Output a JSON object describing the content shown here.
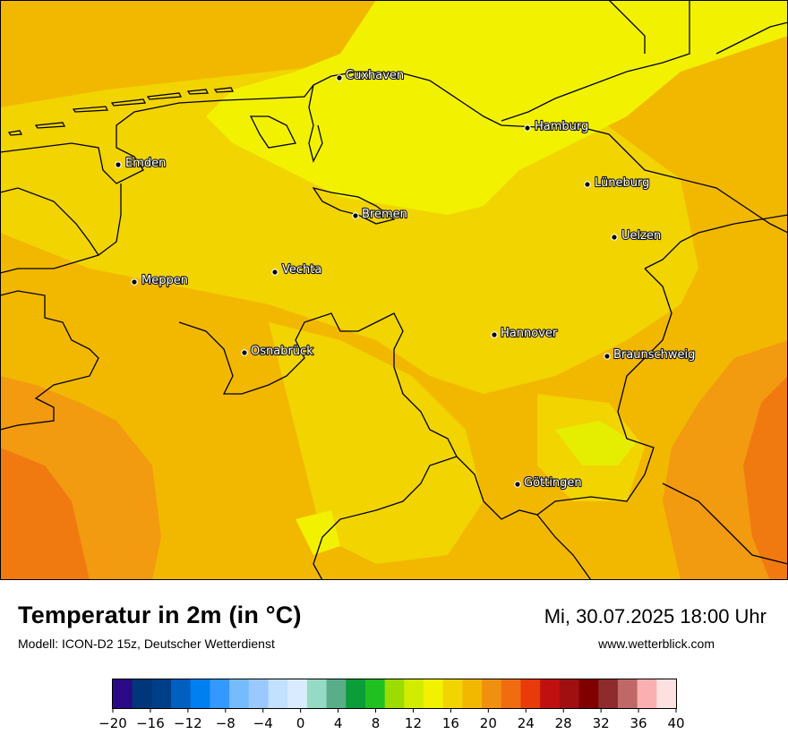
{
  "map": {
    "cities": [
      {
        "name": "Cuxhaven"
      },
      {
        "name": "Hamburg"
      },
      {
        "name": "Emden"
      },
      {
        "name": "Lüneburg"
      },
      {
        "name": "Bremen"
      },
      {
        "name": "Uelzen"
      },
      {
        "name": "Vechta"
      },
      {
        "name": "Meppen"
      },
      {
        "name": "Hannover"
      },
      {
        "name": "Osnabrück"
      },
      {
        "name": "Braunschweig"
      },
      {
        "name": "Göttingen"
      }
    ]
  },
  "footer": {
    "title": "Temperatur in 2m (in °C)",
    "model": "Modell: ICON-D2 15z, Deutscher Wetterdienst",
    "datetime": "Mi, 30.07.2025 18:00 Uhr",
    "website": "www.wetterblick.com"
  },
  "legend": {
    "ticks": [
      "−20",
      "−16",
      "−12",
      "−8",
      "−4",
      "0",
      "4",
      "8",
      "12",
      "16",
      "20",
      "24",
      "28",
      "32",
      "36",
      "40"
    ],
    "colors": [
      "#2a0a86",
      "#00367a",
      "#003f87",
      "#0060c0",
      "#0080f0",
      "#3399ff",
      "#77bbff",
      "#99c9ff",
      "#c2e0ff",
      "#d8ebff",
      "#95dbc3",
      "#5aad89",
      "#0a9d3a",
      "#20c020",
      "#9cdc00",
      "#d2ec00",
      "#f2f200",
      "#f2d400",
      "#f2b800",
      "#f09010",
      "#f06c10",
      "#e83a0a",
      "#c01010",
      "#a01010",
      "#800000",
      "#8c2c2c",
      "#c06868",
      "#fab0b0",
      "#fde0e0"
    ]
  }
}
